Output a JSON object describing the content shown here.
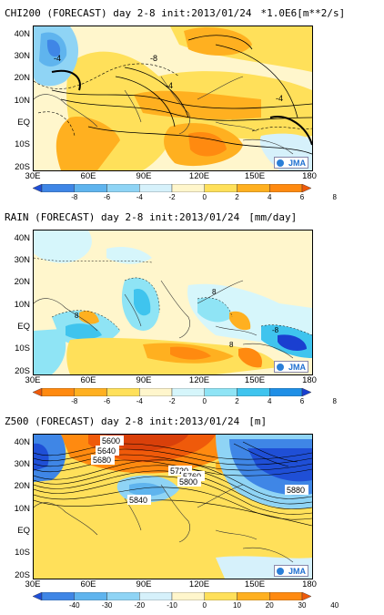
{
  "panels": [
    {
      "id": "chi200",
      "title": "CHI200 (FORECAST) day 2-8 init:2013/01/24",
      "unit": "*1.0E6[m**2/s]",
      "legend_labels": [
        "-8",
        "-6",
        "-4",
        "-2",
        "0",
        "2",
        "4",
        "6",
        "8"
      ],
      "legend_colors": [
        "#1f4fd6",
        "#3f86e6",
        "#5fb4ee",
        "#8fd4f5",
        "#d6f1fb",
        "#fff6cc",
        "#ffe05a",
        "#ffb020",
        "#ff8a10",
        "#ef5a0a"
      ],
      "contour_labels": [
        "-4",
        "-8",
        "-4",
        "-4"
      ]
    },
    {
      "id": "rain",
      "title": "RAIN (FORECAST) day 2-8 init:2013/01/24",
      "unit": "[mm/day]",
      "legend_labels": [
        "-8",
        "-6",
        "-4",
        "-2",
        "0",
        "2",
        "4",
        "6",
        "8"
      ],
      "legend_colors": [
        "#ef5a0a",
        "#ff8a10",
        "#ffb020",
        "#ffe05a",
        "#fff6cc",
        "#d6f6fb",
        "#8fe4f5",
        "#3fc4ee",
        "#1f8fe6",
        "#1a3fd0"
      ],
      "contour_labels": [
        "8",
        "8",
        "-8",
        "8"
      ]
    },
    {
      "id": "z500",
      "title": "Z500 (FORECAST) day 2-8 init:2013/01/24",
      "unit": "[m]",
      "legend_labels": [
        "-40",
        "-30",
        "-20",
        "-10",
        "0",
        "10",
        "20",
        "30",
        "40"
      ],
      "legend_colors": [
        "#1f4fd6",
        "#3f86e6",
        "#5fb4ee",
        "#8fd4f5",
        "#d6f1fb",
        "#fff6cc",
        "#ffe05a",
        "#ffb020",
        "#ff8a10",
        "#ef5a0a"
      ],
      "contour_labels": [
        "5600",
        "5640",
        "5680",
        "5720",
        "5760",
        "5800",
        "5840",
        "5880"
      ]
    }
  ],
  "lat_labels": [
    "40N",
    "30N",
    "20N",
    "10N",
    "EQ",
    "10S",
    "20S"
  ],
  "lon_labels": [
    "30E",
    "60E",
    "90E",
    "120E",
    "150E",
    "180"
  ],
  "logo": "JMA"
}
